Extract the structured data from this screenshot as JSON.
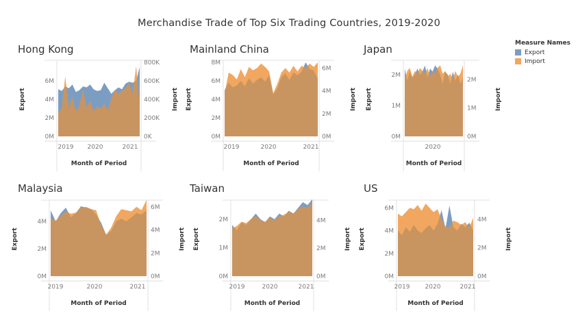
{
  "chart_title": "Merchandise Trade of Top Six Trading Countries, 2019-2020",
  "colors": {
    "export": "#7c9dc2",
    "import": "#f1a760",
    "overlap": "#c89460"
  },
  "legend": {
    "title": "Measure Names",
    "items": [
      {
        "label": "Export",
        "color": "#7c9dc2"
      },
      {
        "label": "Import",
        "color": "#f1a760"
      }
    ]
  },
  "shared": {
    "x_title": "Month of Period",
    "y_left_title": "Export",
    "y_right_title": "Import"
  },
  "chart_data": [
    {
      "type": "area",
      "title": "Hong Kong",
      "x_ticks": [
        "2019",
        "2020",
        "2021"
      ],
      "y_left_ticks": [
        "0M",
        "2M",
        "4M",
        "6M"
      ],
      "y_left_lim": [
        0,
        8000000
      ],
      "y_right_ticks": [
        "0K",
        "200K",
        "400K",
        "600K",
        "800K"
      ],
      "y_right_lim": [
        0,
        800000
      ],
      "series": [
        {
          "name": "Export",
          "axis": "left",
          "values": [
            5.1,
            4.9,
            5.4,
            5.2,
            5.6,
            4.8,
            5.0,
            5.4,
            5.3,
            5.6,
            5.1,
            4.9,
            5.0,
            5.8,
            5.2,
            4.6,
            5.0,
            5.3,
            5.1,
            5.7,
            5.9,
            5.8,
            6.0,
            7.5
          ]
        },
        {
          "name": "Import",
          "axis": "right",
          "values": [
            250,
            310,
            650,
            300,
            420,
            270,
            330,
            500,
            310,
            380,
            270,
            320,
            300,
            350,
            280,
            410,
            500,
            460,
            490,
            520,
            580,
            460,
            760,
            330
          ]
        }
      ]
    },
    {
      "type": "area",
      "title": "Mainland China",
      "x_ticks": [
        "2019",
        "2020",
        "2021"
      ],
      "y_left_ticks": [
        "0M",
        "2M",
        "4M",
        "6M",
        "8M"
      ],
      "y_left_lim": [
        0,
        8000000
      ],
      "y_right_ticks": [
        "0M",
        "2M",
        "4M",
        "6M"
      ],
      "y_right_lim": [
        0,
        6500000
      ],
      "series": [
        {
          "name": "Export",
          "axis": "left",
          "values": [
            5.0,
            5.8,
            5.3,
            5.5,
            6.0,
            5.4,
            6.3,
            5.7,
            6.1,
            6.4,
            5.9,
            6.6,
            4.5,
            5.2,
            6.4,
            6.8,
            6.1,
            6.9,
            6.6,
            7.0,
            8.0,
            7.3,
            7.1,
            6.2
          ]
        },
        {
          "name": "Import",
          "axis": "right",
          "values": [
            3.8,
            5.6,
            5.4,
            5.0,
            5.9,
            5.2,
            6.1,
            5.8,
            6.0,
            6.4,
            6.1,
            5.7,
            3.8,
            4.6,
            5.6,
            6.0,
            5.6,
            6.2,
            5.7,
            6.2,
            6.0,
            6.4,
            6.1,
            6.5
          ]
        }
      ]
    },
    {
      "type": "area",
      "title": "Japan",
      "x_ticks": [
        "2020"
      ],
      "y_left_ticks": [
        "0M",
        "1M",
        "2M"
      ],
      "y_left_lim": [
        0,
        2400000
      ],
      "y_right_ticks": [
        "0M",
        "1M",
        "2M"
      ],
      "y_right_lim": [
        0,
        2600000
      ],
      "series": [
        {
          "name": "Export",
          "axis": "left",
          "values": [
            2.2,
            1.8,
            2.1,
            1.9,
            2.0,
            2.2,
            2.0,
            2.1,
            2.3,
            1.9,
            2.2,
            2.1,
            2.3,
            2.2,
            2.0,
            1.7,
            2.1,
            2.0,
            1.7,
            2.1,
            1.8,
            2.0,
            1.7,
            1.9
          ]
        },
        {
          "name": "Import",
          "axis": "right",
          "values": [
            2.0,
            2.3,
            2.4,
            2.1,
            2.3,
            2.2,
            2.4,
            2.3,
            2.2,
            2.4,
            2.1,
            2.3,
            2.2,
            2.4,
            2.5,
            2.2,
            2.3,
            2.1,
            2.2,
            2.0,
            2.3,
            2.1,
            2.2,
            2.5
          ]
        }
      ]
    },
    {
      "type": "area",
      "title": "Malaysia",
      "x_ticks": [
        "2019",
        "2020",
        "2021"
      ],
      "y_left_ticks": [
        "0M",
        "2M",
        "4M"
      ],
      "y_left_lim": [
        0,
        5400000
      ],
      "y_right_ticks": [
        "0M",
        "2M",
        "4M",
        "6M"
      ],
      "y_right_lim": [
        0,
        6400000
      ],
      "series": [
        {
          "name": "Export",
          "axis": "left",
          "values": [
            4.8,
            4.0,
            4.6,
            5.0,
            4.3,
            4.6,
            5.1,
            5.0,
            4.9,
            4.5,
            3.9,
            3.0,
            3.3,
            4.0,
            4.2,
            4.0,
            4.3,
            4.6,
            4.5,
            4.8
          ]
        },
        {
          "name": "Import",
          "axis": "right",
          "values": [
            5.0,
            4.8,
            5.2,
            5.6,
            5.4,
            5.5,
            5.9,
            6.0,
            5.8,
            5.7,
            4.4,
            3.6,
            4.2,
            5.2,
            5.8,
            5.7,
            5.6,
            6.0,
            5.7,
            6.6
          ]
        }
      ]
    },
    {
      "type": "area",
      "title": "Taiwan",
      "x_ticks": [
        "2019",
        "2020",
        "2021"
      ],
      "y_left_ticks": [
        "0M",
        "1M",
        "2M"
      ],
      "y_left_lim": [
        0,
        2600000
      ],
      "y_right_ticks": [
        "0M",
        "2M",
        "4M"
      ],
      "y_right_lim": [
        0,
        5300000
      ],
      "series": [
        {
          "name": "Export",
          "axis": "left",
          "values": [
            1.8,
            1.6,
            1.9,
            1.8,
            2.0,
            2.2,
            2.0,
            1.9,
            2.1,
            2.0,
            2.2,
            2.1,
            2.3,
            2.2,
            2.4,
            2.6,
            2.5,
            2.7
          ]
        },
        {
          "name": "Import",
          "axis": "right",
          "values": [
            3.4,
            3.6,
            3.9,
            3.8,
            4.1,
            4.3,
            4.0,
            3.9,
            4.2,
            4.0,
            4.3,
            4.4,
            4.6,
            4.5,
            4.8,
            5.0,
            4.9,
            5.3
          ]
        }
      ]
    },
    {
      "type": "area",
      "title": "US",
      "x_ticks": [
        "2019",
        "2020",
        "2021"
      ],
      "y_left_ticks": [
        "0M",
        "2M",
        "4M",
        "6M"
      ],
      "y_left_lim": [
        0,
        6500000
      ],
      "y_right_ticks": [
        "0M",
        "2M",
        "4M"
      ],
      "y_right_lim": [
        0,
        5200000
      ],
      "series": [
        {
          "name": "Export",
          "axis": "left",
          "values": [
            4.0,
            3.6,
            4.3,
            3.9,
            4.5,
            4.0,
            3.8,
            4.2,
            4.5,
            4.0,
            4.6,
            5.8,
            4.2,
            6.2,
            4.3,
            4.0,
            4.6,
            4.3,
            4.7,
            4.0
          ]
        },
        {
          "name": "Import",
          "axis": "right",
          "values": [
            4.4,
            4.2,
            4.5,
            4.8,
            4.7,
            5.0,
            4.6,
            5.1,
            4.8,
            4.5,
            4.7,
            4.0,
            3.5,
            3.4,
            3.9,
            3.8,
            3.6,
            3.8,
            3.4,
            4.1
          ]
        }
      ]
    }
  ]
}
